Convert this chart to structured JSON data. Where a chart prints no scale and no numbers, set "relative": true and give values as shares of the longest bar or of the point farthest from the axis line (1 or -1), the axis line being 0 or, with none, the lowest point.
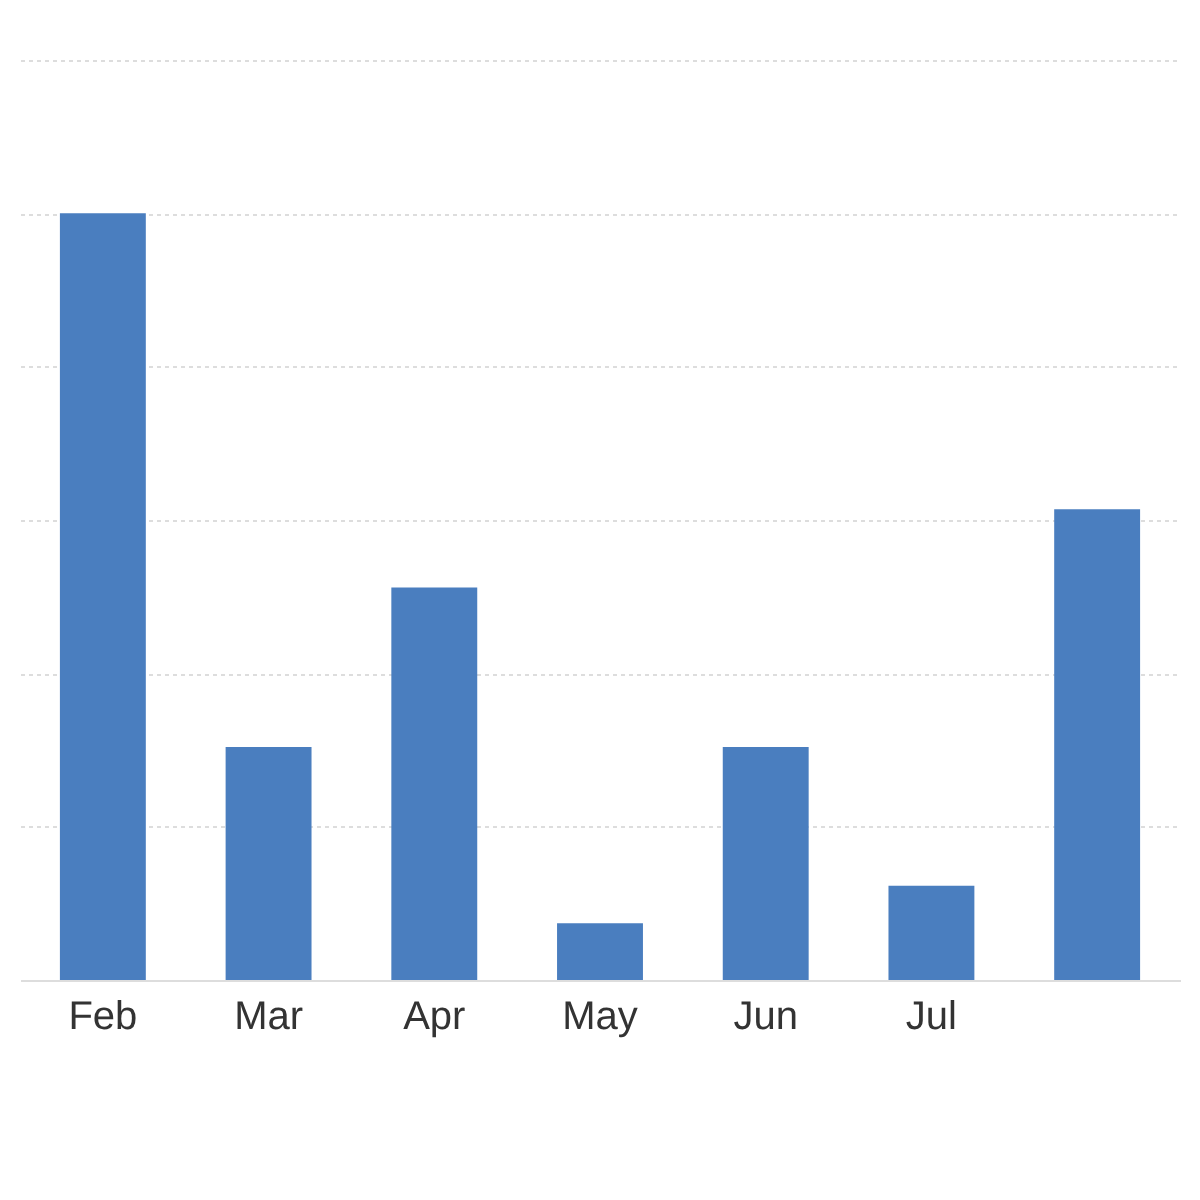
{
  "chart_data": {
    "type": "bar",
    "categories": [
      "Feb",
      "Mar",
      "Apr",
      "May",
      "Jun",
      "Jul",
      null
    ],
    "values": [
      1,
      0.304,
      0.512,
      0.074,
      0.304,
      0.123,
      0.614
    ],
    "color": "#4a7ebf",
    "relative": true,
    "grid": "y"
  }
}
